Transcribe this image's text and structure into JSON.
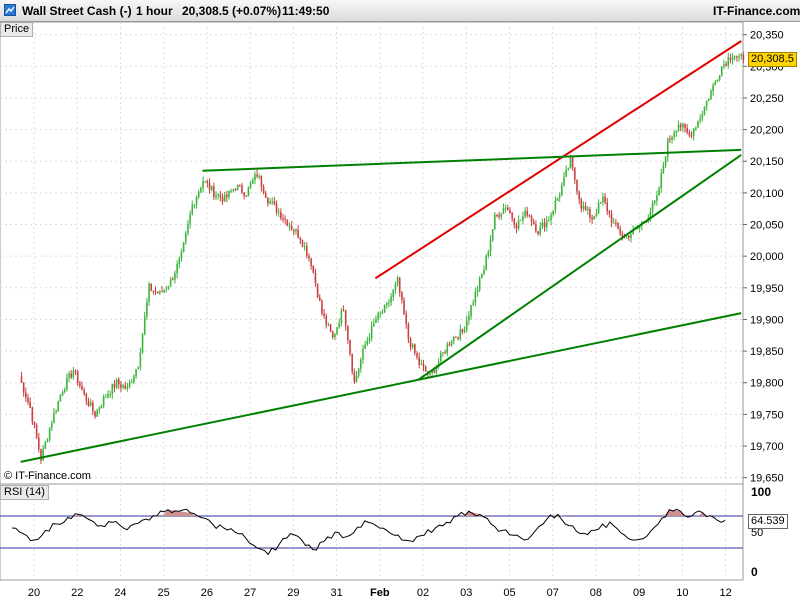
{
  "header": {
    "instrument": "Wall Street Cash (-)",
    "timeframe": "1 hour",
    "last_price": "20,308.5 (+0.07%)",
    "time": "11:49:50",
    "brand": "IT-Finance.com"
  },
  "price_pane_label": "Price",
  "watermark": "© IT-Finance.com",
  "colors": {
    "up_candle": "#3cb43c",
    "down_candle": "#c84040",
    "resistance_line": "#e00000",
    "trend_lines": "#008000",
    "rsi_line": "#000000",
    "rsi_band": "#3030a0",
    "rsi_overbought_fill": "#d09090",
    "price_tag": "#ffd400"
  },
  "chart_data": [
    {
      "type": "line",
      "name": "price",
      "price_tag": "20,308.5",
      "ylim": [
        19640,
        20370
      ],
      "y_ticks": [
        {
          "value": 20350,
          "label": "20,350"
        },
        {
          "value": 20300,
          "label": "20,300"
        },
        {
          "value": 20250,
          "label": "20,250"
        },
        {
          "value": 20200,
          "label": "20,200"
        },
        {
          "value": 20150,
          "label": "20,150"
        },
        {
          "value": 20100,
          "label": "20,100"
        },
        {
          "value": 20050,
          "label": "20,050"
        },
        {
          "value": 20000,
          "label": "20,000"
        },
        {
          "value": 19950,
          "label": "19,950"
        },
        {
          "value": 19900,
          "label": "19,900"
        },
        {
          "value": 19850,
          "label": "19,850"
        },
        {
          "value": 19800,
          "label": "19,800"
        },
        {
          "value": 19750,
          "label": "19,750"
        },
        {
          "value": 19700,
          "label": "19,700"
        },
        {
          "value": 19650,
          "label": "19,650"
        }
      ],
      "x_labels": [
        "20",
        "22",
        "24",
        "25",
        "26",
        "27",
        "29",
        "31",
        "Feb",
        "02",
        "03",
        "05",
        "07",
        "08",
        "09",
        "10",
        "12"
      ],
      "path": [
        [
          "20",
          19810
        ],
        [
          "20",
          19760
        ],
        [
          "20",
          19680
        ],
        [
          "20",
          19740
        ],
        [
          "22",
          19790
        ],
        [
          "22",
          19820
        ],
        [
          "22",
          19780
        ],
        [
          "22",
          19750
        ],
        [
          "24",
          19780
        ],
        [
          "24",
          19800
        ],
        [
          "24",
          19790
        ],
        [
          "24",
          19830
        ],
        [
          "25",
          19950
        ],
        [
          "25",
          19940
        ],
        [
          "25",
          19960
        ],
        [
          "25",
          20000
        ],
        [
          "26",
          20080
        ],
        [
          "26",
          20120
        ],
        [
          "26",
          20100
        ],
        [
          "26",
          20090
        ],
        [
          "27",
          20110
        ],
        [
          "27",
          20100
        ],
        [
          "27",
          20130
        ],
        [
          "27",
          20090
        ],
        [
          "29",
          20070
        ],
        [
          "29",
          20050
        ],
        [
          "29",
          20030
        ],
        [
          "29",
          19990
        ],
        [
          "31",
          19910
        ],
        [
          "31",
          19870
        ],
        [
          "31",
          19920
        ],
        [
          "31",
          19800
        ],
        [
          "Feb",
          19860
        ],
        [
          "Feb",
          19900
        ],
        [
          "Feb",
          19920
        ],
        [
          "Feb",
          19960
        ],
        [
          "02",
          19870
        ],
        [
          "02",
          19830
        ],
        [
          "02",
          19810
        ],
        [
          "02",
          19840
        ],
        [
          "03",
          19870
        ],
        [
          "03",
          19880
        ],
        [
          "03",
          19930
        ],
        [
          "03",
          19980
        ],
        [
          "05",
          20060
        ],
        [
          "05",
          20080
        ],
        [
          "05",
          20050
        ],
        [
          "05",
          20070
        ],
        [
          "07",
          20040
        ],
        [
          "07",
          20060
        ],
        [
          "07",
          20100
        ],
        [
          "07",
          20150
        ],
        [
          "08",
          20080
        ],
        [
          "08",
          20060
        ],
        [
          "08",
          20090
        ],
        [
          "08",
          20050
        ],
        [
          "09",
          20030
        ],
        [
          "09",
          20040
        ],
        [
          "09",
          20060
        ],
        [
          "09",
          20090
        ],
        [
          "10",
          20180
        ],
        [
          "10",
          20210
        ],
        [
          "10",
          20190
        ],
        [
          "10",
          20220
        ],
        [
          "12",
          20260
        ],
        [
          "12",
          20300
        ],
        [
          "12",
          20320
        ],
        [
          "12",
          20310
        ]
      ],
      "trend_lines": [
        {
          "kind": "resistance",
          "from": [
            "Feb",
            19965
          ],
          "to": [
            "12",
            20340
          ]
        },
        {
          "kind": "support",
          "from": [
            "20",
            19675
          ],
          "to": [
            "12",
            19910
          ]
        },
        {
          "kind": "support",
          "from": [
            "02",
            19805
          ],
          "to": [
            "12",
            20160
          ]
        },
        {
          "kind": "resistance",
          "from": [
            "26",
            20135
          ],
          "to": [
            "12",
            20168
          ]
        }
      ]
    },
    {
      "type": "line",
      "name": "RSI (14)",
      "title": "RSI (14)",
      "last_value": "64.539",
      "ylim": [
        0,
        100
      ],
      "levels": [
        70,
        30
      ],
      "y_ticks": [
        {
          "value": 100,
          "label": "100"
        },
        {
          "value": 50,
          "label": "50"
        },
        {
          "value": 0,
          "label": "0"
        }
      ],
      "values": [
        55,
        48,
        40,
        52,
        60,
        68,
        72,
        65,
        58,
        62,
        55,
        60,
        66,
        70,
        78,
        76,
        74,
        68,
        60,
        55,
        50,
        42,
        30,
        22,
        35,
        48,
        40,
        28,
        38,
        50,
        44,
        56,
        62,
        55,
        48,
        40,
        38,
        46,
        55,
        62,
        70,
        76,
        72,
        60,
        52,
        46,
        40,
        52,
        66,
        72,
        58,
        48,
        52,
        60,
        58,
        46,
        40,
        45,
        60,
        78,
        76,
        70,
        74,
        68,
        64.5
      ]
    }
  ]
}
